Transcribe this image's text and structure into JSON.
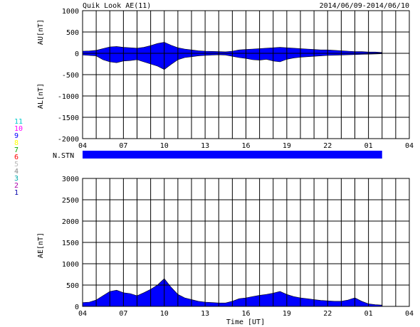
{
  "header": {
    "title": "Quik Look AE(11)",
    "date_range": "2014/06/09-2014/06/10"
  },
  "chart_data": [
    {
      "type": "area",
      "panel": "AU / AL",
      "ylabel_upper": "AU[nT]",
      "ylabel_lower": "AL[nT]",
      "ylim": [
        -2000,
        1000
      ],
      "y_ticks": [
        1000,
        500,
        0,
        -500,
        -1000,
        -1500,
        -2000
      ],
      "x_range_hours": [
        4,
        28
      ],
      "x_tick_labels": [
        "04",
        "07",
        "10",
        "13",
        "16",
        "19",
        "22",
        "01",
        "04"
      ],
      "grid": true,
      "series": [
        {
          "name": "AU",
          "x": [
            4.0,
            4.5,
            5.0,
            5.5,
            6.0,
            6.5,
            7.0,
            7.5,
            8.0,
            8.5,
            9.0,
            9.5,
            10.0,
            10.5,
            11.0,
            11.5,
            12.0,
            12.5,
            13.0,
            13.5,
            14.0,
            14.5,
            15.0,
            15.5,
            16.0,
            16.5,
            17.0,
            17.5,
            18.0,
            18.5,
            19.0,
            19.5,
            20.0,
            20.5,
            21.0,
            21.5,
            22.0,
            22.5,
            23.0,
            23.5,
            24.0,
            24.5,
            25.0,
            25.5,
            26.0
          ],
          "values": [
            50,
            55,
            70,
            110,
            150,
            160,
            140,
            130,
            120,
            140,
            180,
            230,
            260,
            190,
            130,
            100,
            80,
            60,
            50,
            45,
            40,
            35,
            50,
            80,
            90,
            100,
            110,
            120,
            130,
            140,
            130,
            120,
            110,
            100,
            90,
            80,
            80,
            70,
            60,
            50,
            40,
            40,
            30,
            30,
            20
          ]
        },
        {
          "name": "AL",
          "x": [
            4.0,
            4.5,
            5.0,
            5.5,
            6.0,
            6.5,
            7.0,
            7.5,
            8.0,
            8.5,
            9.0,
            9.5,
            10.0,
            10.5,
            11.0,
            11.5,
            12.0,
            12.5,
            13.0,
            13.5,
            14.0,
            14.5,
            15.0,
            15.5,
            16.0,
            16.5,
            17.0,
            17.5,
            18.0,
            18.5,
            19.0,
            19.5,
            20.0,
            20.5,
            21.0,
            21.5,
            22.0,
            22.5,
            23.0,
            23.5,
            24.0,
            24.5,
            25.0,
            25.5,
            26.0
          ],
          "values": [
            -40,
            -50,
            -60,
            -150,
            -200,
            -220,
            -180,
            -170,
            -150,
            -200,
            -250,
            -300,
            -380,
            -260,
            -150,
            -100,
            -80,
            -60,
            -50,
            -40,
            -35,
            -40,
            -70,
            -100,
            -120,
            -150,
            -160,
            -140,
            -180,
            -200,
            -140,
            -110,
            -90,
            -80,
            -70,
            -60,
            -50,
            -45,
            -40,
            -35,
            -30,
            -25,
            -20,
            -15,
            -10
          ]
        }
      ]
    },
    {
      "type": "bar",
      "panel": "station count",
      "ylabel": "N.STN",
      "station_levels": [
        "11",
        "10",
        "9",
        "8",
        "7",
        "6",
        "5",
        "4",
        "3",
        "2",
        "1"
      ],
      "station_colors": [
        "#00cccc",
        "#ff00ff",
        "#0000ff",
        "#ffff00",
        "#00aa00",
        "#ff0000",
        "#bbbbbb",
        "#888888",
        "#00aaaa",
        "#aa00aa",
        "#0000aa"
      ],
      "x_range_hours": [
        4,
        26
      ],
      "value": 11
    },
    {
      "type": "area",
      "panel": "AE",
      "ylabel": "AE[nT]",
      "xlabel": "Time [UT]",
      "ylim": [
        0,
        3000
      ],
      "y_ticks": [
        3000,
        2500,
        2000,
        1500,
        1000,
        500,
        0
      ],
      "x_range_hours": [
        4,
        28
      ],
      "x_tick_labels": [
        "04",
        "07",
        "10",
        "13",
        "16",
        "19",
        "22",
        "01",
        "04"
      ],
      "grid": true,
      "series": [
        {
          "name": "AE",
          "x": [
            4.0,
            4.5,
            5.0,
            5.5,
            6.0,
            6.5,
            7.0,
            7.5,
            8.0,
            8.5,
            9.0,
            9.5,
            10.0,
            10.5,
            11.0,
            11.5,
            12.0,
            12.5,
            13.0,
            13.5,
            14.0,
            14.5,
            15.0,
            15.5,
            16.0,
            16.5,
            17.0,
            17.5,
            18.0,
            18.5,
            19.0,
            19.5,
            20.0,
            20.5,
            21.0,
            21.5,
            22.0,
            22.5,
            23.0,
            23.5,
            24.0,
            24.5,
            25.0,
            25.5,
            26.0
          ],
          "values": [
            90,
            100,
            150,
            250,
            350,
            380,
            320,
            300,
            250,
            320,
            400,
            500,
            650,
            450,
            280,
            200,
            160,
            120,
            100,
            90,
            80,
            80,
            120,
            180,
            200,
            230,
            260,
            280,
            310,
            350,
            280,
            230,
            200,
            180,
            160,
            140,
            130,
            120,
            120,
            150,
            200,
            120,
            60,
            40,
            30
          ]
        }
      ]
    }
  ]
}
